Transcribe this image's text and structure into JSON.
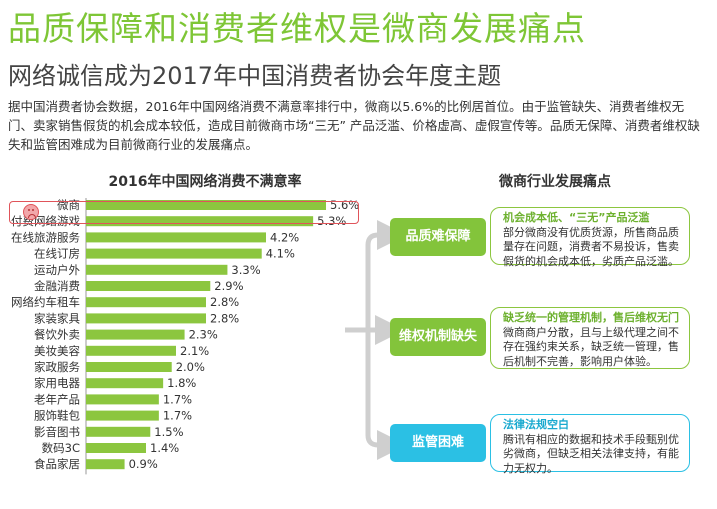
{
  "header": {
    "title": "品质保障和消费者维权是微商发展痛点",
    "subtitle": "网络诚信成为2017年中国消费者协会年度主题"
  },
  "intro": {
    "text": "据中国消费者协会数据，2016年中国网络消费不满意率排行中，微商以5.6%的比例居首位。由于监管缺失、消费者维权无门、卖家销售假货的机会成本较低，造成目前微商市场“三无” 产品泛滥、价格虚高、虚假宣传等。品质无保障、消费者维权缺失和监管困难成为目前微商行业的发展痛点。"
  },
  "chart_data": {
    "type": "bar",
    "orientation": "horizontal",
    "title": "2016年中国网络消费不满意率",
    "categories": [
      "微商",
      "付费网络游戏",
      "在线旅游服务",
      "在线订房",
      "运动户外",
      "金融消费",
      "网络约车租车",
      "家装家具",
      "餐饮外卖",
      "美妆美容",
      "家政服务",
      "家用电器",
      "老年产品",
      "服饰鞋包",
      "影音图书",
      "数码3C",
      "食品家居"
    ],
    "values": [
      5.6,
      5.3,
      4.2,
      4.1,
      3.3,
      2.9,
      2.8,
      2.8,
      2.3,
      2.1,
      2.0,
      1.8,
      1.7,
      1.7,
      1.5,
      1.4,
      0.9
    ],
    "value_labels": [
      "5.6%",
      "5.3%",
      "4.2%",
      "4.1%",
      "3.3%",
      "2.9%",
      "2.8%",
      "2.8%",
      "2.3%",
      "2.1%",
      "2.0%",
      "1.8%",
      "1.7%",
      "1.7%",
      "1.5%",
      "1.4%",
      "0.9%"
    ],
    "xlim": [
      0,
      5.6
    ],
    "bar_color": "#8cc63f",
    "highlight_color": "#e0545a",
    "grid": false
  },
  "pain_points": {
    "title": "微商行业发展痛点",
    "items": [
      {
        "label": "品质难保障",
        "heading": "机会成本低、“三无”产品泛滥",
        "text": "部分微商没有优质货源，所售商品质量存在问题，消费者不易投诉，售卖假货的机会成本低，劣质产品泛滥。"
      },
      {
        "label": "维权机制缺失",
        "heading": "缺乏统一的管理机制，售后维权无门",
        "text": "微商商户分散，且与上级代理之间不存在强约束关系，缺乏统一管理，售后机制不完善，影响用户体验。"
      },
      {
        "label": "监管困难",
        "heading": "法律法规空白",
        "text": "腾讯有相应的数据和技术手段甄别优劣微商，但缺乏相关法律支持，有能力无权力。"
      }
    ]
  },
  "colors": {
    "title_green": "#7ec636",
    "pill_green": "#83c43b",
    "pill_blue": "#2bc0e4",
    "arrow_gray": "#cfcfcf"
  }
}
